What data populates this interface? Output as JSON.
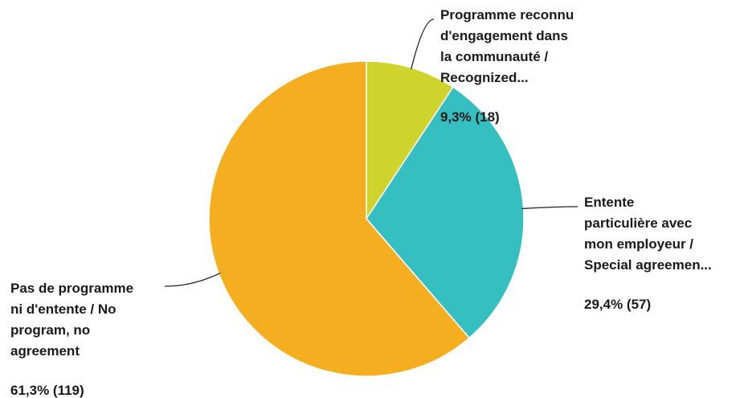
{
  "chart_data": {
    "type": "pie",
    "title": "",
    "start_angle_deg": 0,
    "direction": "clockwise",
    "slices": [
      {
        "key": "recognized",
        "label_lines": [
          "Programme reconnu",
          "d'engagement dans",
          "la communauté /",
          "Recognized..."
        ],
        "value": 18,
        "percent_label": "9,3% (18)",
        "color": "#cfd42c"
      },
      {
        "key": "special",
        "label_lines": [
          "Entente",
          "particulière avec",
          "mon employeur /",
          "Special agreemen..."
        ],
        "value": 57,
        "percent_label": "29,4% (57)",
        "color": "#35bfc1"
      },
      {
        "key": "none",
        "label_lines": [
          "Pas de programme",
          "ni d'entente / No",
          "program, no",
          "agreement"
        ],
        "value": 119,
        "percent_label": "61,3% (119)",
        "color": "#f5ae1f"
      }
    ]
  }
}
